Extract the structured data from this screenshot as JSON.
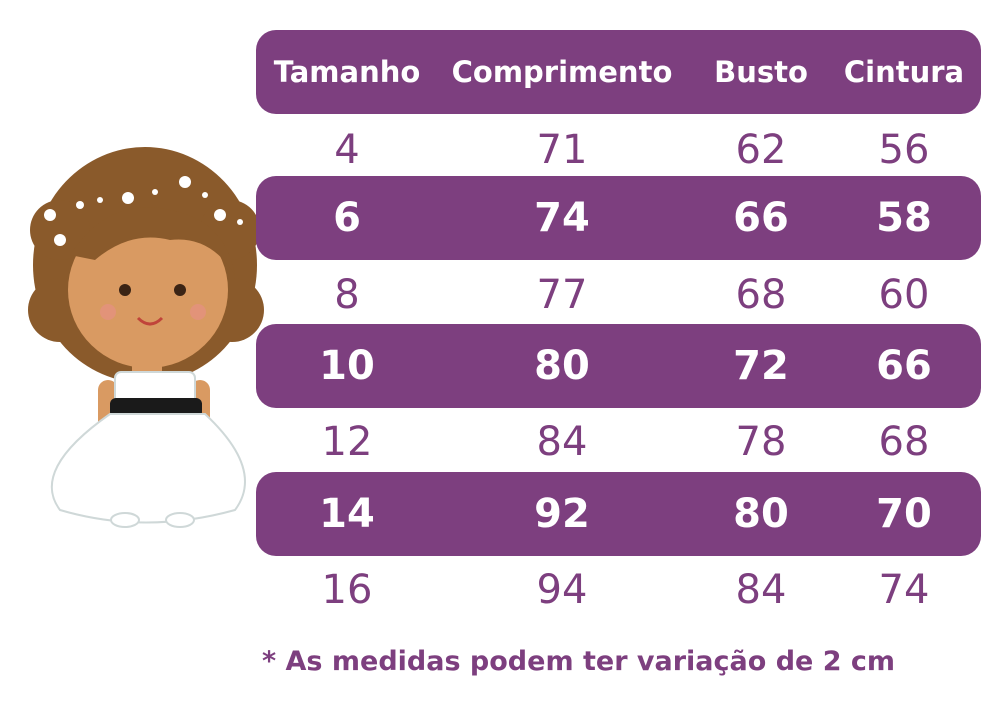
{
  "table": {
    "headers": [
      "Tamanho",
      "Comprimento",
      "Busto",
      "Cintura"
    ],
    "rows": [
      [
        "4",
        "71",
        "62",
        "56"
      ],
      [
        "6",
        "74",
        "66",
        "58"
      ],
      [
        "8",
        "77",
        "68",
        "60"
      ],
      [
        "10",
        "80",
        "72",
        "66"
      ],
      [
        "12",
        "84",
        "78",
        "68"
      ],
      [
        "14",
        "92",
        "80",
        "70"
      ],
      [
        "16",
        "94",
        "84",
        "74"
      ]
    ]
  },
  "footnote": "* As medidas podem ter variação de 2 cm",
  "colors": {
    "accent": "#7d3f7f",
    "header_text": "#ffffff",
    "plain_row_text": "#7d3f7f",
    "band_row_text": "#ffffff"
  },
  "illustration": {
    "icon": "girl-in-white-dress-illustration"
  }
}
